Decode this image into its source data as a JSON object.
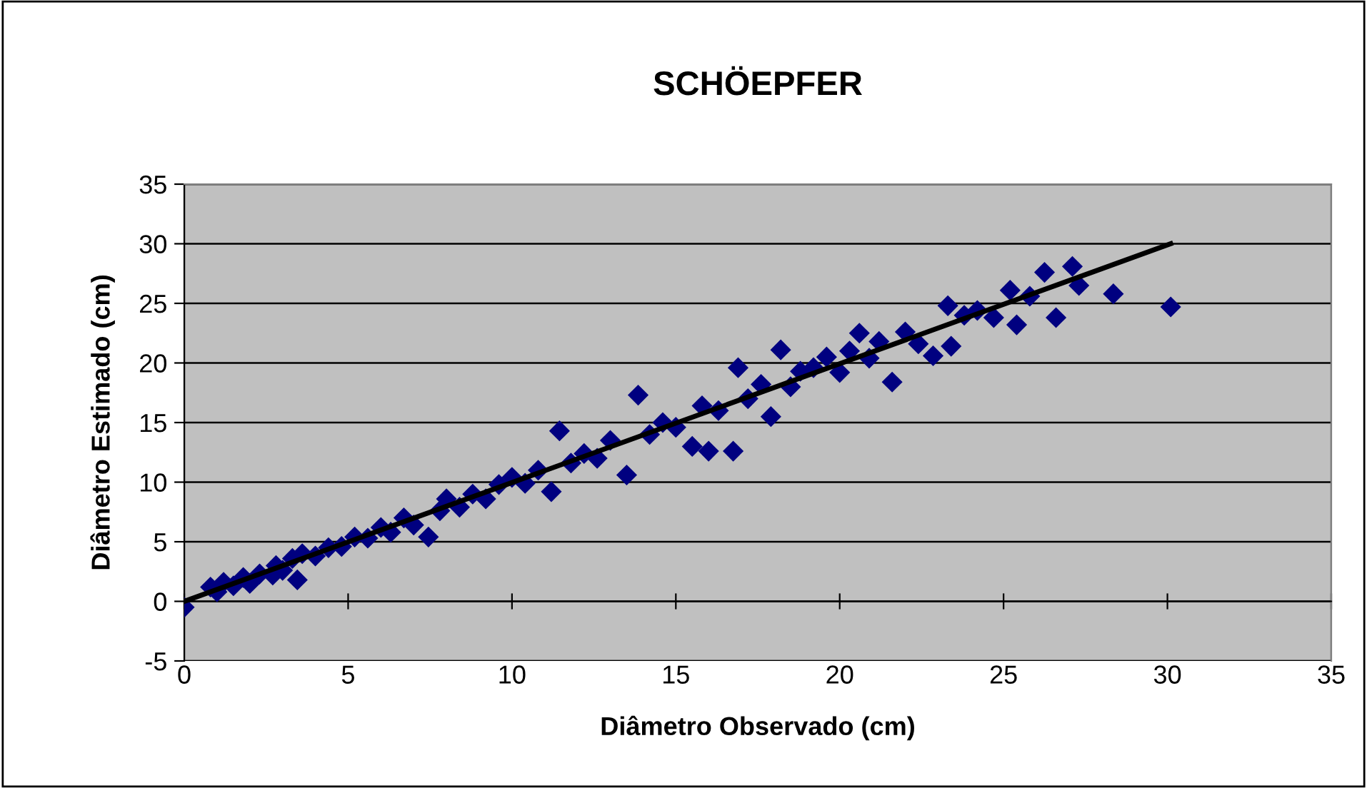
{
  "chart_data": {
    "type": "scatter",
    "title": "SCHÖEPFER",
    "xlabel": "Diâmetro Observado (cm)",
    "ylabel": "Diâmetro Estimado (cm)",
    "xlim": [
      0,
      35
    ],
    "ylim": [
      -5,
      35
    ],
    "xticks": [
      0,
      5,
      10,
      15,
      20,
      25,
      30,
      35
    ],
    "yticks": [
      -5,
      0,
      5,
      10,
      15,
      20,
      25,
      30,
      35
    ],
    "grid": "y",
    "series": [
      {
        "marker": "diamond",
        "color": "#000080",
        "x": [
          0,
          0.8,
          1.0,
          1.2,
          1.5,
          1.8,
          2.0,
          2.3,
          2.7,
          2.8,
          3.0,
          3.3,
          3.45,
          3.6,
          4.0,
          4.4,
          4.8,
          5.2,
          5.6,
          6.0,
          6.3,
          6.7,
          7.0,
          7.45,
          7.8,
          8.0,
          8.4,
          8.8,
          9.2,
          9.6,
          10.0,
          10.4,
          10.8,
          11.2,
          11.45,
          11.8,
          12.2,
          12.6,
          13.0,
          13.5,
          13.85,
          14.2,
          14.6,
          15.0,
          15.5,
          15.8,
          16.0,
          16.3,
          16.75,
          16.9,
          17.2,
          17.6,
          17.9,
          18.2,
          18.5,
          18.8,
          19.2,
          19.6,
          20.0,
          20.3,
          20.6,
          20.9,
          21.2,
          21.6,
          22.0,
          22.4,
          22.85,
          23.3,
          23.4,
          23.8,
          24.2,
          24.7,
          25.2,
          25.4,
          25.8,
          26.25,
          26.6,
          27.1,
          27.3,
          28.35,
          30.1
        ],
        "values": [
          -0.5,
          1.2,
          0.8,
          1.6,
          1.3,
          2.0,
          1.5,
          2.3,
          2.2,
          3.0,
          2.6,
          3.6,
          1.8,
          4.0,
          3.8,
          4.5,
          4.6,
          5.4,
          5.3,
          6.2,
          5.8,
          7.0,
          6.4,
          5.4,
          7.6,
          8.6,
          7.9,
          9.0,
          8.6,
          9.8,
          10.4,
          9.9,
          11.0,
          9.2,
          14.3,
          11.6,
          12.4,
          12.0,
          13.5,
          10.6,
          17.3,
          14.0,
          15.0,
          14.6,
          13.0,
          16.4,
          12.6,
          16.0,
          12.6,
          19.6,
          17.0,
          18.2,
          15.5,
          21.1,
          18.0,
          19.3,
          19.6,
          20.5,
          19.2,
          21.0,
          22.5,
          20.4,
          21.8,
          18.4,
          22.6,
          21.6,
          20.6,
          24.8,
          21.4,
          24.0,
          24.4,
          23.8,
          26.1,
          23.2,
          25.6,
          27.6,
          23.8,
          28.1,
          26.5,
          25.8,
          24.7
        ]
      },
      {
        "type": "line",
        "color": "#000000",
        "x": [
          0,
          30.1
        ],
        "values": [
          0,
          30
        ]
      }
    ]
  }
}
